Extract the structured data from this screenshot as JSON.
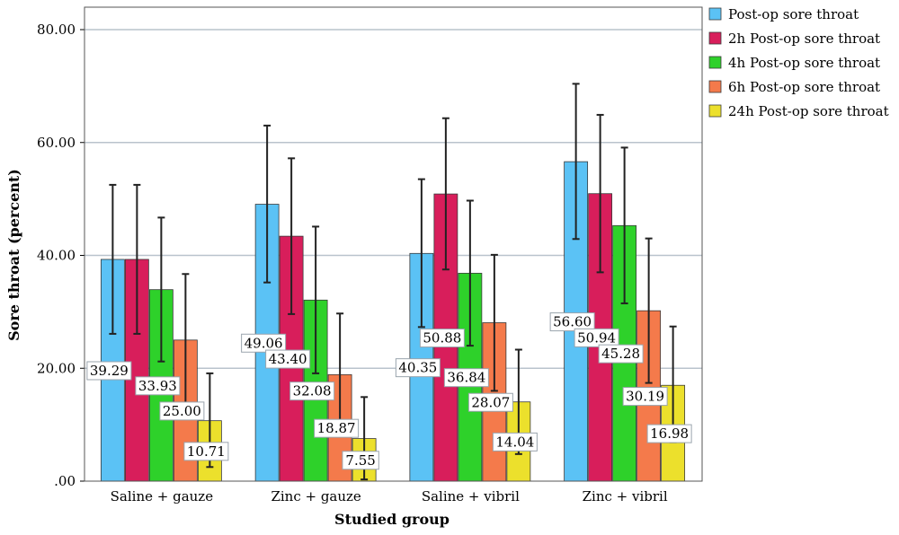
{
  "chart_data": {
    "type": "bar",
    "xlabel": "Studied group",
    "ylabel": "Sore throat (percent)",
    "ylim": [
      0,
      80
    ],
    "yticks": [
      0,
      20,
      40,
      60,
      80
    ],
    "ytick_labels": [
      ".00",
      "20.00",
      "40.00",
      "60.00",
      "80.00"
    ],
    "grid": true,
    "legend_position": "top-right",
    "categories": [
      "Saline + gauze",
      "Zinc + gauze",
      "Saline + vibril",
      "Zinc + vibril"
    ],
    "series": [
      {
        "name": "Post-op sore throat",
        "color": "#5bc2f5",
        "values": [
          39.29,
          49.06,
          40.35,
          56.6
        ],
        "labels": [
          "39.29",
          "49.06",
          "40.35",
          "56.60"
        ],
        "error_low": [
          26.1,
          35.2,
          27.3,
          42.9
        ],
        "error_high": [
          52.5,
          63.0,
          53.5,
          70.4
        ]
      },
      {
        "name": "2h Post-op sore throat",
        "color": "#d81e5b",
        "values": [
          39.29,
          43.4,
          50.88,
          50.94
        ],
        "labels": [
          "",
          "43.40",
          "50.88",
          "50.94"
        ],
        "error_low": [
          26.1,
          29.6,
          37.5,
          37.0
        ],
        "error_high": [
          52.5,
          57.2,
          64.3,
          64.9
        ]
      },
      {
        "name": "4h Post-op sore throat",
        "color": "#2ed12a",
        "values": [
          33.93,
          32.08,
          36.84,
          45.28
        ],
        "labels": [
          "33.93",
          "32.08",
          "36.84",
          "45.28"
        ],
        "error_low": [
          21.2,
          19.1,
          24.0,
          31.5
        ],
        "error_high": [
          46.7,
          45.1,
          49.7,
          59.1
        ]
      },
      {
        "name": "6h Post-op sore throat",
        "color": "#f47a4b",
        "values": [
          25.0,
          18.87,
          28.07,
          30.19
        ],
        "labels": [
          "25.00",
          "18.87",
          "28.07",
          "30.19"
        ],
        "error_low": [
          13.3,
          8.1,
          16.0,
          17.4
        ],
        "error_high": [
          36.7,
          29.7,
          40.1,
          43.0
        ]
      },
      {
        "name": "24h Post-op sore throat",
        "color": "#ece02c",
        "values": [
          10.71,
          7.55,
          14.04,
          16.98
        ],
        "labels": [
          "10.71",
          "7.55",
          "14.04",
          "16.98"
        ],
        "error_low": [
          2.5,
          0.3,
          4.8,
          6.9
        ],
        "error_high": [
          19.1,
          14.9,
          23.3,
          27.4
        ]
      }
    ]
  }
}
